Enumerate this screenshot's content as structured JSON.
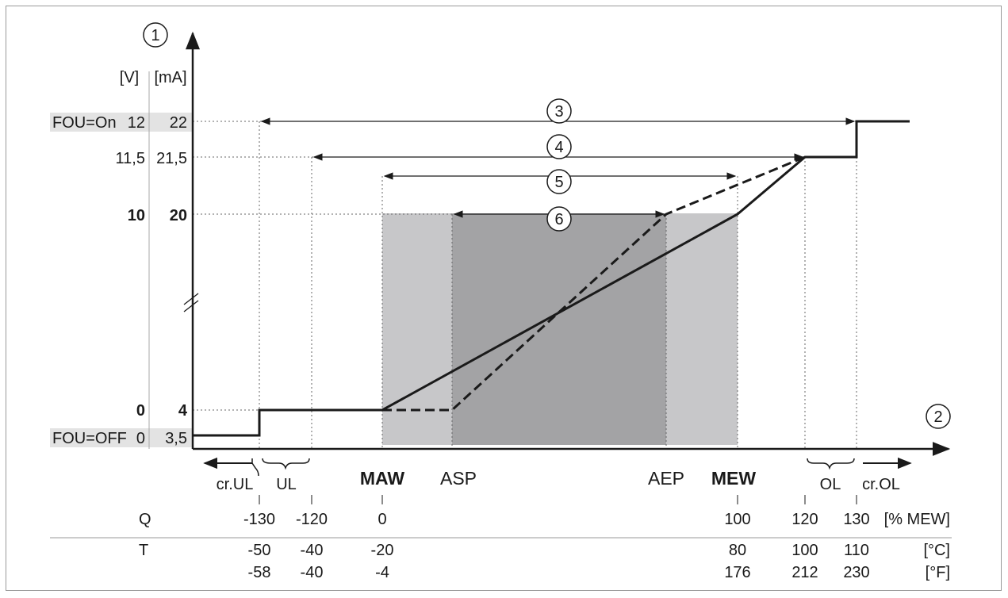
{
  "diagram": {
    "y_axis": {
      "marker": "1",
      "col_volt": "[V]",
      "col_ma": "[mA]"
    },
    "x_axis": {
      "marker": "2"
    },
    "y_levels": [
      {
        "id": "fou-on",
        "prefix": "FOU=On",
        "volt": "12",
        "ma": "22",
        "highlight": true
      },
      {
        "id": "v115",
        "prefix": "",
        "volt": "11,5",
        "ma": "21,5",
        "highlight": false
      },
      {
        "id": "v10",
        "prefix": "",
        "volt": "10",
        "ma": "20",
        "highlight": false,
        "bold": true
      },
      {
        "id": "v0",
        "prefix": "",
        "volt": "0",
        "ma": "4",
        "highlight": false,
        "bold": true
      },
      {
        "id": "fou-off",
        "prefix": "FOU=OFF",
        "volt": "0",
        "ma": "3,5",
        "highlight": true
      }
    ],
    "range_markers": [
      "3",
      "4",
      "5",
      "6"
    ],
    "point_labels": {
      "maw": "MAW",
      "asp": "ASP",
      "aep": "AEP",
      "mew": "MEW"
    },
    "region_labels": {
      "cr_ul": "cr.UL",
      "ul": "UL",
      "ol": "OL",
      "cr_ol": "cr.OL"
    },
    "table": {
      "q_label": "Q",
      "q_values": [
        "-130",
        "-120",
        "0",
        "100",
        "120",
        "130"
      ],
      "q_unit": "[% MEW]",
      "t_label": "T",
      "t_c_values": [
        "-50",
        "-40",
        "-20",
        "80",
        "100",
        "110"
      ],
      "t_c_unit": "[°C]",
      "t_f_values": [
        "-58",
        "-40",
        "-4",
        "176",
        "212",
        "230"
      ],
      "t_f_unit": "[°F]"
    }
  }
}
